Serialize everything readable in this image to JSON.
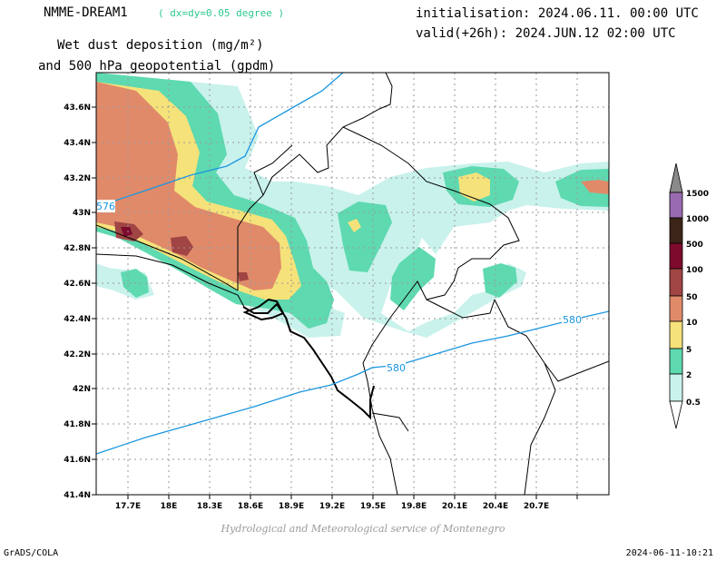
{
  "header": {
    "model": "NMME-DREAM1",
    "resolution": "( dx=dy=0.05 degree )",
    "title_line1": "Wet dust deposition (mg/m²)",
    "title_line2": "and 500 hPa geopotential (gpdm)",
    "init_line": "initialisation: 2024.06.11. 00:00 UTC",
    "valid_line": "valid(+26h): 2024.JUN.12 02:00 UTC"
  },
  "footer": {
    "credit": "Hydrological and Meteorological service of Montenegro",
    "software": "GrADS/COLA",
    "timestamp": "2024-06-11-10:21"
  },
  "map": {
    "lon_ticks": [
      "17.7E",
      "18E",
      "18.3E",
      "18.6E",
      "18.9E",
      "19.2E",
      "19.5E",
      "19.8E",
      "20.1E",
      "20.4E",
      "20.7E"
    ],
    "lat_ticks": [
      "43.6N",
      "43.4N",
      "43.2N",
      "43N",
      "42.8N",
      "42.6N",
      "42.4N",
      "42.2N",
      "42N",
      "41.8N",
      "41.6N",
      "41.4N"
    ],
    "contour_labels": [
      "576",
      "580",
      "580"
    ],
    "grid": true
  },
  "legend": {
    "levels": [
      "1500",
      "1000",
      "500",
      "100",
      "50",
      "10",
      "5",
      "2",
      "0.5"
    ],
    "colors": {
      "l1500": "#9a6ab0",
      "l1000": "#3d2418",
      "l500": "#7e0a2e",
      "l100": "#a04444",
      "l50": "#e08a6a",
      "l10": "#f6e27a",
      "l5": "#5ed9b0",
      "l2": "#c9f2ec",
      "top": "#8a8a8a"
    }
  },
  "colors": {
    "contour": "#1a96e0",
    "coast": "#000000",
    "grid": "#9a9a9a",
    "resolution_text": "#2ec98e"
  }
}
